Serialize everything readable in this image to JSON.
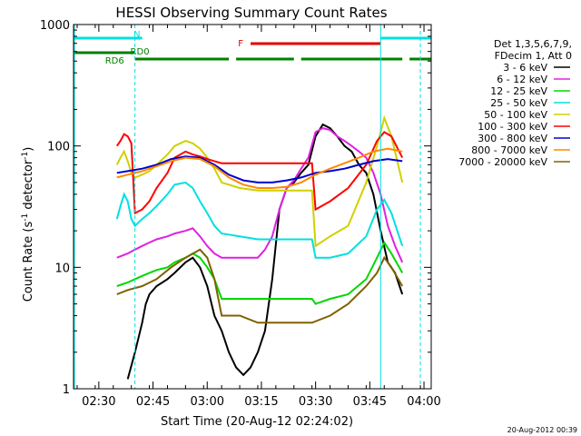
{
  "chart_data": {
    "type": "line",
    "title": "HESSI Observing Summary Count Rates",
    "xlabel": "Start Time (20-Aug-12 02:24:02)",
    "ylabel_main": "Count Rate (s",
    "ylabel_sup1": "-1",
    "ylabel_mid": " detector",
    "ylabel_sup2": "-1",
    "ylabel_end": ")",
    "y_scale": "log",
    "ylim": [
      1,
      1000
    ],
    "xlim_minutes": [
      -1,
      98
    ],
    "x_start": "02:24:02",
    "x_tick_labels": [
      "02:30",
      "02:45",
      "03:00",
      "03:15",
      "03:30",
      "03:45",
      "04:00"
    ],
    "x_tick_minutes": [
      6,
      21,
      36,
      51,
      66,
      81,
      96
    ],
    "y_tick_labels": [
      "1",
      "10",
      "100",
      "1000"
    ],
    "y_tick_values": [
      1,
      10,
      100,
      1000
    ],
    "legend_header": [
      "Det 1,3,5,6,7,9,",
      "FDecim 1, Att 0"
    ],
    "legend_placement": "right",
    "timestamp": "20-Aug-2012 00:39",
    "series": [
      {
        "name": "3 - 6 keV",
        "color": "#000000",
        "x": [
          14,
          16,
          18,
          19,
          20,
          22,
          25,
          27,
          30,
          32,
          34,
          36,
          38,
          40,
          42,
          44,
          46,
          48,
          50,
          52,
          54,
          56,
          58,
          60,
          62,
          64,
          66,
          68,
          70,
          72,
          74,
          76,
          78,
          80,
          82,
          84,
          86,
          88,
          90,
          92,
          94,
          96
        ],
        "y": [
          1.2,
          2,
          3.5,
          5,
          6,
          7,
          8,
          9,
          11,
          12,
          10,
          7,
          4,
          3,
          2,
          1.5,
          1.3,
          1.5,
          2,
          3,
          8,
          30,
          45,
          50,
          60,
          70,
          120,
          150,
          140,
          120,
          100,
          90,
          70,
          60,
          40,
          20,
          11,
          9,
          6,
          null,
          null,
          null
        ]
      },
      {
        "name": "6 - 12 keV",
        "color": "#e020e0",
        "x": [
          11,
          14,
          16,
          18,
          20,
          22,
          25,
          27,
          30,
          32,
          34,
          36,
          38,
          40,
          42,
          44,
          46,
          48,
          50,
          52,
          54,
          56,
          58,
          60,
          62,
          64,
          66,
          68,
          70,
          72,
          74,
          76,
          78,
          80,
          82,
          84,
          86,
          88,
          90
        ],
        "y": [
          12,
          13,
          14,
          15,
          16,
          17,
          18,
          19,
          20,
          21,
          18,
          15,
          13,
          12,
          12,
          12,
          12,
          12,
          12,
          14,
          18,
          30,
          45,
          52,
          65,
          80,
          130,
          140,
          135,
          120,
          110,
          100,
          90,
          80,
          60,
          40,
          22,
          15,
          11
        ]
      },
      {
        "name": "12 - 25 keV",
        "color": "#00d800",
        "x": [
          11,
          14,
          16,
          18,
          20,
          22,
          25,
          27,
          30,
          32,
          34,
          36,
          38,
          40,
          45,
          50,
          55,
          60,
          65,
          66,
          70,
          75,
          80,
          83,
          85,
          87,
          90
        ],
        "y": [
          7,
          7.5,
          8,
          8.5,
          9,
          9.5,
          10,
          11,
          12,
          13,
          12,
          10,
          8,
          5.5,
          5.5,
          5.5,
          5.5,
          5.5,
          5.5,
          5,
          5.5,
          6,
          8,
          12,
          16,
          13,
          9
        ]
      },
      {
        "name": "25 - 50 keV",
        "color": "#00e0e0",
        "x": [
          11,
          12,
          13,
          14,
          15,
          16,
          18,
          20,
          22,
          25,
          27,
          30,
          32,
          34,
          36,
          38,
          40,
          45,
          50,
          55,
          60,
          65,
          66,
          70,
          75,
          80,
          83,
          85,
          87,
          90
        ],
        "y": [
          25,
          32,
          40,
          35,
          25,
          22,
          25,
          28,
          32,
          40,
          48,
          50,
          45,
          35,
          28,
          22,
          19,
          18,
          17,
          17,
          17,
          17,
          12,
          12,
          13,
          18,
          30,
          36,
          28,
          15
        ]
      },
      {
        "name": "50 - 100 keV",
        "color": "#d0d000",
        "x": [
          11,
          12,
          13,
          14,
          15,
          16,
          18,
          20,
          22,
          25,
          27,
          30,
          32,
          34,
          36,
          38,
          40,
          45,
          50,
          55,
          60,
          65,
          66,
          70,
          75,
          80,
          83,
          85,
          87,
          90
        ],
        "y": [
          70,
          80,
          90,
          75,
          60,
          55,
          58,
          62,
          70,
          85,
          100,
          110,
          105,
          95,
          80,
          65,
          50,
          45,
          43,
          43,
          43,
          43,
          15,
          18,
          22,
          50,
          100,
          170,
          120,
          50
        ]
      },
      {
        "name": "100 - 300 keV",
        "color": "#ff0000",
        "x": [
          11,
          12,
          13,
          14,
          15,
          16,
          18,
          20,
          22,
          25,
          27,
          30,
          32,
          34,
          36,
          38,
          40,
          45,
          50,
          55,
          60,
          65,
          66,
          70,
          75,
          80,
          83,
          85,
          87,
          90
        ],
        "y": [
          100,
          110,
          125,
          120,
          105,
          28,
          30,
          35,
          45,
          60,
          80,
          90,
          85,
          82,
          78,
          75,
          72,
          72,
          72,
          72,
          72,
          72,
          30,
          35,
          45,
          70,
          110,
          130,
          120,
          80
        ]
      },
      {
        "name": "300 - 800 keV",
        "color": "#0000d0",
        "x": [
          11,
          14,
          18,
          22,
          26,
          30,
          34,
          38,
          42,
          46,
          50,
          54,
          58,
          62,
          66,
          70,
          74,
          78,
          82,
          86,
          90
        ],
        "y": [
          60,
          62,
          65,
          70,
          78,
          82,
          80,
          70,
          58,
          52,
          50,
          50,
          52,
          55,
          60,
          62,
          65,
          70,
          75,
          78,
          75
        ]
      },
      {
        "name": "800 - 7000 keV",
        "color": "#ff8800",
        "x": [
          11,
          14,
          18,
          22,
          26,
          30,
          34,
          38,
          42,
          46,
          50,
          54,
          58,
          62,
          66,
          70,
          74,
          78,
          82,
          86,
          90
        ],
        "y": [
          55,
          58,
          62,
          68,
          75,
          80,
          78,
          68,
          55,
          48,
          45,
          45,
          46,
          50,
          58,
          65,
          72,
          80,
          90,
          95,
          90
        ]
      },
      {
        "name": "7000 - 20000 keV",
        "color": "#806000",
        "x": [
          11,
          14,
          18,
          22,
          26,
          30,
          34,
          36,
          38,
          40,
          45,
          50,
          55,
          60,
          65,
          70,
          75,
          80,
          83,
          85,
          87,
          90
        ],
        "y": [
          6,
          6.5,
          7,
          8,
          10,
          12,
          14,
          12,
          8,
          4,
          4,
          3.5,
          3.5,
          3.5,
          3.5,
          4,
          5,
          7,
          9,
          12,
          10,
          7
        ]
      }
    ],
    "bars": [
      {
        "label": "N",
        "color": "#00e0e0",
        "segments": [
          [
            -1,
            18
          ],
          [
            84,
            98
          ]
        ]
      },
      {
        "label": "F",
        "color": "#e00000",
        "segments": [
          [
            48,
            84
          ]
        ]
      },
      {
        "label": "RD0",
        "color": "#008000",
        "segments": [
          [
            -1,
            16
          ]
        ]
      },
      {
        "label": "RD6",
        "color": "#008000",
        "segments": [
          [
            16,
            42
          ],
          [
            44,
            60
          ],
          [
            62,
            90
          ],
          [
            92,
            98
          ]
        ]
      }
    ],
    "cyan_verticals_solid": [
      84
    ],
    "cyan_verticals_dashed": [
      16,
      95
    ]
  }
}
